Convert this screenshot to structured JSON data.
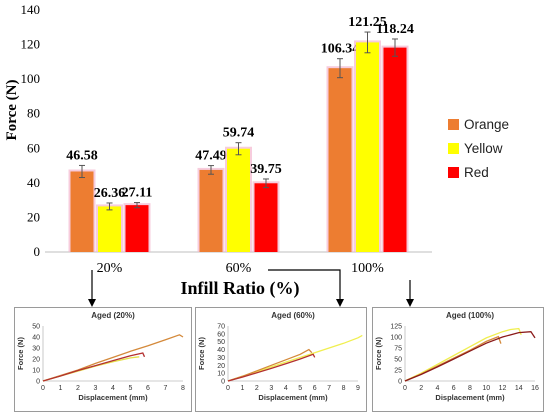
{
  "chart_data": [
    {
      "type": "bar",
      "xlabel": "Infill Ratio (%)",
      "ylabel": "Force (N)",
      "ylim": [
        0,
        140
      ],
      "yticks": [
        0,
        20,
        40,
        60,
        80,
        100,
        120,
        140
      ],
      "categories": [
        "20%",
        "60%",
        "100%"
      ],
      "series": [
        {
          "name": "Orange",
          "color": "#ed7d31",
          "values": [
            46.58,
            47.49,
            106.34
          ],
          "labels": [
            "46.58",
            "47.49",
            "106.34"
          ],
          "errors": [
            3.5,
            2.5,
            5.5
          ]
        },
        {
          "name": "Yellow",
          "color": "#ffff00",
          "values": [
            26.36,
            59.74,
            121.25
          ],
          "labels": [
            "26.36",
            "59.74",
            "121.25"
          ],
          "errors": [
            2.0,
            3.5,
            6.0
          ]
        },
        {
          "name": "Red",
          "color": "#ff0000",
          "values": [
            27.11,
            39.75,
            118.24
          ],
          "labels": [
            "27.11",
            "39.75",
            "118.24"
          ],
          "errors": [
            1.5,
            2.5,
            5.0
          ]
        }
      ],
      "legend": "right",
      "grid": false
    },
    {
      "type": "line",
      "title": "Aged (20%)",
      "xlabel": "Displacement (mm)",
      "ylabel": "Force (N)",
      "xlim": [
        0,
        8
      ],
      "ylim": [
        0,
        50
      ],
      "xticks": [
        0,
        1,
        2,
        3,
        4,
        5,
        6,
        7,
        8
      ],
      "yticks": [
        0,
        10,
        20,
        30,
        40,
        50
      ],
      "series": [
        {
          "color": "#d4893a",
          "x": [
            0,
            1,
            2,
            3,
            4,
            5,
            6,
            7,
            7.8,
            8.0
          ],
          "y": [
            0,
            5,
            10,
            16,
            21.5,
            27,
            32,
            37.5,
            42,
            40
          ]
        },
        {
          "color": "#e5e04a",
          "x": [
            0,
            1,
            2,
            3,
            4,
            5,
            5.5
          ],
          "y": [
            0,
            4.5,
            9,
            13.5,
            17.5,
            21,
            22
          ]
        },
        {
          "color": "#b33030",
          "x": [
            0,
            1,
            2,
            3,
            4,
            5,
            5.7,
            5.8
          ],
          "y": [
            0,
            4.5,
            9.5,
            14,
            18.5,
            23,
            25.5,
            22
          ]
        }
      ]
    },
    {
      "type": "line",
      "title": "Aged (60%)",
      "xlabel": "Displacement (mm)",
      "ylabel": "Force (N)",
      "xlim": [
        0,
        9
      ],
      "ylim": [
        0,
        70
      ],
      "xticks": [
        0,
        1,
        2,
        3,
        4,
        5,
        6,
        7,
        8,
        9
      ],
      "yticks": [
        0,
        10,
        20,
        30,
        40,
        50,
        60,
        70
      ],
      "series": [
        {
          "color": "#f0ef50",
          "x": [
            0,
            1,
            2,
            3,
            4,
            5,
            6,
            7,
            8,
            9,
            9.3
          ],
          "y": [
            0,
            6,
            12,
            18,
            24,
            30,
            36,
            42,
            48,
            55,
            58
          ]
        },
        {
          "color": "#d4893a",
          "x": [
            0,
            1,
            2,
            3,
            4,
            5,
            5.6,
            5.8
          ],
          "y": [
            0,
            6,
            13,
            20,
            27,
            34,
            40,
            36
          ]
        },
        {
          "color": "#b33030",
          "x": [
            0,
            1,
            2,
            3,
            4,
            5,
            5.9,
            6.0
          ],
          "y": [
            0,
            5,
            10.5,
            16,
            22,
            28,
            34,
            30
          ]
        }
      ]
    },
    {
      "type": "line",
      "title": "Aged (100%)",
      "xlabel": "Displacement (mm)",
      "ylabel": "Force (N)",
      "xlim": [
        0,
        16
      ],
      "ylim": [
        0,
        125
      ],
      "xticks": [
        0,
        2,
        4,
        6,
        8,
        10,
        12,
        14,
        16
      ],
      "yticks": [
        0,
        25,
        50,
        75,
        100,
        125
      ],
      "series": [
        {
          "color": "#f0ef50",
          "x": [
            0,
            2,
            4,
            6,
            8,
            10,
            12,
            13,
            14,
            14.3
          ],
          "y": [
            0,
            18,
            38,
            58,
            78,
            98,
            112,
            117,
            119,
            105
          ]
        },
        {
          "color": "#d4893a",
          "x": [
            0,
            2,
            4,
            6,
            8,
            10,
            11.5,
            11.8
          ],
          "y": [
            0,
            16,
            34,
            52,
            70,
            90,
            101,
            85
          ]
        },
        {
          "color": "#8b1a1a",
          "x": [
            0,
            2,
            4,
            6,
            8,
            10,
            12,
            14,
            15.5,
            16
          ],
          "y": [
            0,
            15,
            32,
            50,
            68,
            86,
            100,
            110,
            112,
            98
          ]
        }
      ]
    }
  ]
}
